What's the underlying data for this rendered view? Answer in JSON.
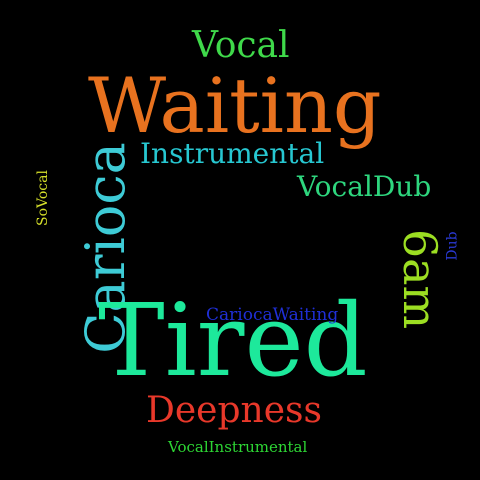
{
  "words": {
    "tired": {
      "text": "Tired",
      "color": "#1de99b",
      "rotate": 0
    },
    "waiting": {
      "text": "Waiting",
      "color": "#e8721f",
      "rotate": 0
    },
    "carioca": {
      "text": "Carioca",
      "color": "#3ecbd6",
      "rotate": -90
    },
    "deepness": {
      "text": "Deepness",
      "color": "#e8382a",
      "rotate": 0
    },
    "sixam": {
      "text": "6am",
      "color": "#9cde22",
      "rotate": 90
    },
    "vocal": {
      "text": "Vocal",
      "color": "#3fd94a",
      "rotate": 0
    },
    "instrumental": {
      "text": "Instrumental",
      "color": "#27c7d1",
      "rotate": 0
    },
    "vocaldub": {
      "text": "VocalDub",
      "color": "#2ed67e",
      "rotate": 0
    },
    "cariocawaiting": {
      "text": "CariocaWaiting",
      "color": "#1f2fd6",
      "rotate": 0
    },
    "vocalinstrumental": {
      "text": "VocalInstrumental",
      "color": "#2dd634",
      "rotate": 0
    },
    "sovocal": {
      "text": "SoVocal",
      "color": "#d6e02a",
      "rotate": -90
    },
    "dub": {
      "text": "Dub",
      "color": "#2a3ad6",
      "rotate": -90
    }
  }
}
